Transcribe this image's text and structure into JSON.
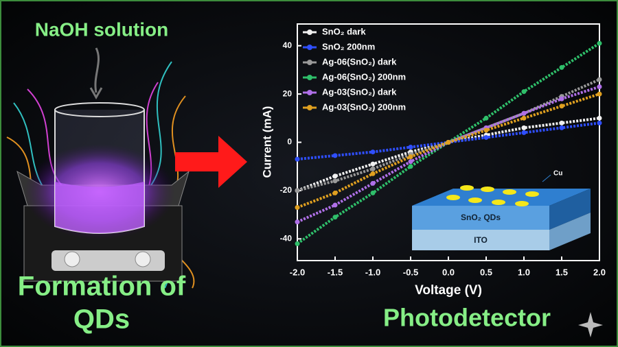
{
  "left_panel": {
    "top_label": "NaOH solution",
    "bottom_label": [
      "Formation of",
      "QDs"
    ]
  },
  "caption": "Photodetector",
  "inset": {
    "electrode": "Cu",
    "layer": "SnO₂ QDs",
    "substrate": "ITO"
  },
  "chart_data": {
    "type": "line",
    "x_label": "Voltage (V)",
    "y_label": "Current (mA)",
    "x": [
      -2,
      -1.5,
      -1,
      -0.5,
      0,
      0.5,
      1,
      1.5,
      2
    ],
    "xlim": [
      -2,
      2
    ],
    "xticks": [
      {
        "value": -2,
        "label": "-2.0"
      },
      {
        "value": -1.5,
        "label": "-1.5"
      },
      {
        "value": -1,
        "label": "-1.0"
      },
      {
        "value": -0.5,
        "label": "-0.5"
      },
      {
        "value": 0,
        "label": "0.0"
      },
      {
        "value": 0.5,
        "label": "0.5"
      },
      {
        "value": 1,
        "label": "1.0"
      },
      {
        "value": 1.5,
        "label": "1.5"
      },
      {
        "value": 2,
        "label": "2.0"
      }
    ],
    "ylim": [
      -49,
      49
    ],
    "yticks": [
      -40,
      -20,
      0,
      20,
      40
    ],
    "legend": "upper-left",
    "series": [
      {
        "name": "SnO₂ dark",
        "color": "#f0f0f0",
        "values": [
          -20,
          -14,
          -9,
          -4,
          0,
          3,
          6,
          8,
          10
        ]
      },
      {
        "name": "SnO₂ 200nm",
        "color": "#2f4fff",
        "values": [
          -7,
          -5.5,
          -4,
          -2,
          0,
          2,
          4,
          6,
          8
        ]
      },
      {
        "name": "Ag-06(SnO₂) dark",
        "color": "#9a9a9a",
        "values": [
          -20,
          -16,
          -11,
          -5,
          0,
          6,
          12,
          19,
          26
        ]
      },
      {
        "name": "Ag-06(SnO₂) 200nm",
        "color": "#2fbf6a",
        "values": [
          -42,
          -31,
          -21,
          -10,
          0,
          10,
          21,
          31,
          41
        ]
      },
      {
        "name": "Ag-03(SnO₂) dark",
        "color": "#b070e8",
        "values": [
          -33,
          -26,
          -17,
          -8,
          0,
          6,
          12,
          18,
          23
        ]
      },
      {
        "name": "Ag-03(SnO₂) 200nm",
        "color": "#e0a020",
        "values": [
          -27,
          -21,
          -13,
          -6,
          0,
          5,
          10,
          15,
          20
        ]
      }
    ]
  }
}
